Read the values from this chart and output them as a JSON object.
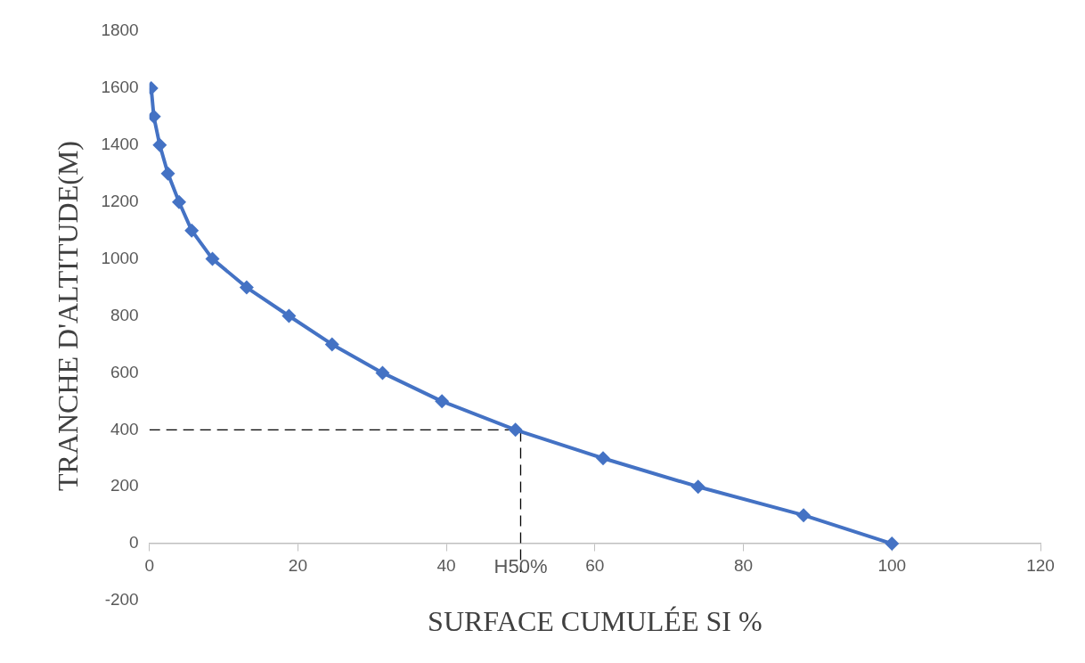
{
  "chart_data": {
    "type": "line",
    "xlabel": "SURFACE CUMULÉE SI %",
    "ylabel": "TRANCHE D'ALTITUDE(M)",
    "xlim": [
      0,
      120
    ],
    "xticks": [
      0,
      20,
      40,
      60,
      80,
      100,
      120
    ],
    "ylim": [
      -200,
      1800
    ],
    "yticks": [
      -200,
      0,
      200,
      400,
      600,
      800,
      1000,
      1200,
      1400,
      1600,
      1800
    ],
    "grid": false,
    "legend": false,
    "series": [
      {
        "color": "#4472c4",
        "marker": "diamond",
        "line_style": "solid",
        "x": [
          0.25,
          0.6,
          1.4,
          2.5,
          4.0,
          5.7,
          8.5,
          13.1,
          18.8,
          24.6,
          31.4,
          39.4,
          49.3,
          61.1,
          73.9,
          88.1,
          100
        ],
        "values": [
          1600,
          1500,
          1400,
          1300,
          1200,
          1100,
          1000,
          900,
          800,
          700,
          600,
          500,
          400,
          300,
          200,
          100,
          0
        ]
      },
      {
        "color": "#000000",
        "marker": "none",
        "line_style": "dashed",
        "x": [
          0,
          50,
          50
        ],
        "values": [
          400,
          400,
          -100
        ]
      }
    ],
    "annotations": [
      {
        "text": "H50%",
        "x": 50,
        "y": 0
      }
    ]
  }
}
